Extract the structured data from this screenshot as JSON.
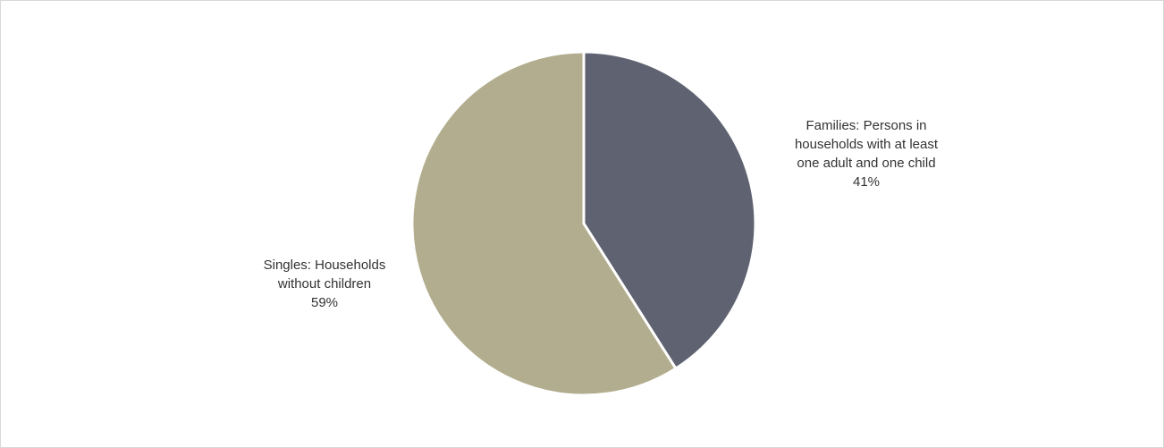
{
  "chart_data": {
    "type": "pie",
    "title": "",
    "slices": [
      {
        "label_lines": [
          "Families: Persons in",
          "households with at least",
          "one adult and one child"
        ],
        "percent_label": "41%",
        "value": 41,
        "color": "#5f6270"
      },
      {
        "label_lines": [
          "Singles: Households",
          "without children"
        ],
        "percent_label": "59%",
        "value": 59,
        "color": "#b2ad8e"
      }
    ],
    "start_angle": "12 o'clock",
    "direction": "clockwise",
    "slice_border_color": "#ffffff"
  }
}
